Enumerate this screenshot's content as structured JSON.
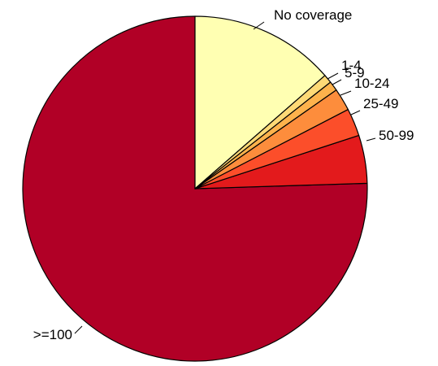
{
  "chart_data": {
    "type": "pie",
    "title": "",
    "start": "top",
    "direction": "clockwise",
    "slices": [
      {
        "label": "No coverage",
        "value": 13.6,
        "color": "#FFFFB2"
      },
      {
        "label": "1-4",
        "value": 0.8,
        "color": "#FED976"
      },
      {
        "label": "5-9",
        "value": 0.9,
        "color": "#FEB24C"
      },
      {
        "label": "10-24",
        "value": 2.1,
        "color": "#FD8D3C"
      },
      {
        "label": "25-49",
        "value": 2.6,
        "color": "#FC4E2A"
      },
      {
        "label": "50-99",
        "value": 4.5,
        "color": "#E31A1C"
      },
      {
        "label": ">=100",
        "value": 75.5,
        "color": "#B10026"
      }
    ]
  }
}
